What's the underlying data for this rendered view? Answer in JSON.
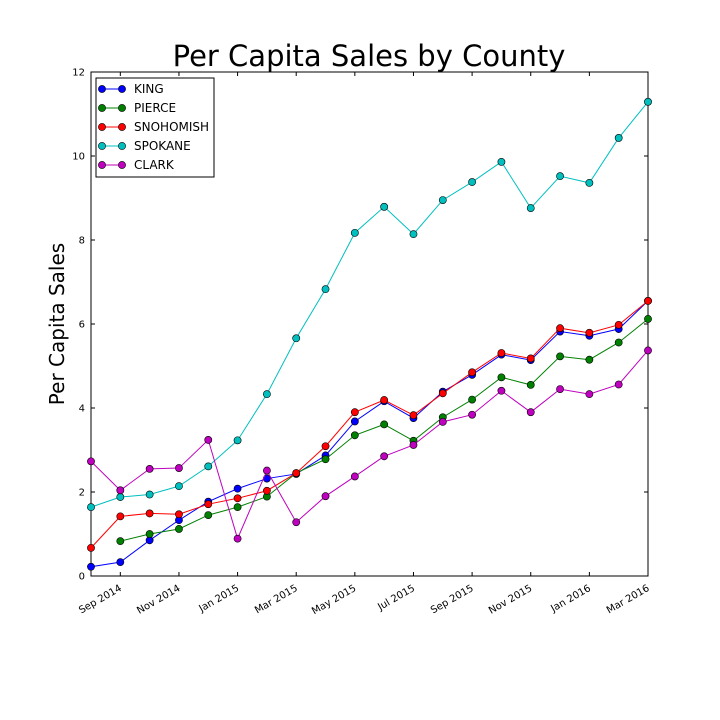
{
  "chart_data": {
    "type": "line",
    "title": "Per Capita Sales by County",
    "xlabel": "",
    "ylabel": "Per Capita Sales",
    "ylim": [
      0,
      12
    ],
    "yticks": [
      "0",
      "2",
      "4",
      "6",
      "8",
      "10",
      "12"
    ],
    "xticks": [
      "Sep 2014",
      "Nov 2014",
      "Jan 2015",
      "Mar 2015",
      "May 2015",
      "Jul 2015",
      "Sep 2015",
      "Nov 2015",
      "Jan 2016",
      "Mar 2016"
    ],
    "x": [
      "2014-08-01",
      "2014-09-01",
      "2014-10-01",
      "2014-11-01",
      "2014-12-01",
      "2015-01-01",
      "2015-02-01",
      "2015-03-01",
      "2015-04-01",
      "2015-05-01",
      "2015-06-01",
      "2015-07-01",
      "2015-08-01",
      "2015-09-01",
      "2015-10-01",
      "2015-11-01",
      "2015-12-01",
      "2016-01-01",
      "2016-02-01",
      "2016-03-01"
    ],
    "legend_position": "top-left",
    "grid": false,
    "series": [
      {
        "name": "KING",
        "color": "#0000ff",
        "values": [
          0.22,
          0.33,
          0.85,
          1.33,
          1.77,
          2.08,
          2.32,
          2.43,
          2.87,
          3.68,
          4.16,
          3.76,
          4.39,
          4.79,
          5.27,
          5.14,
          5.82,
          5.72,
          5.88,
          6.55
        ]
      },
      {
        "name": "PIERCE",
        "color": "#008000",
        "values": [
          null,
          0.83,
          1.0,
          1.12,
          1.45,
          1.64,
          1.89,
          2.45,
          2.78,
          3.35,
          3.61,
          3.22,
          3.78,
          4.2,
          4.73,
          4.55,
          5.23,
          5.15,
          5.56,
          6.12
        ]
      },
      {
        "name": "SNOHOMISH",
        "color": "#ff0000",
        "values": [
          0.67,
          1.42,
          1.49,
          1.47,
          1.71,
          1.85,
          2.03,
          2.45,
          3.09,
          3.9,
          4.19,
          3.83,
          4.35,
          4.85,
          5.31,
          5.18,
          5.9,
          5.79,
          5.98,
          6.55
        ]
      },
      {
        "name": "SPOKANE",
        "color": "#00bfbf",
        "values": [
          1.64,
          1.88,
          1.94,
          2.14,
          2.61,
          3.23,
          4.33,
          5.66,
          6.83,
          8.17,
          8.79,
          8.14,
          8.95,
          9.38,
          9.86,
          8.76,
          9.52,
          9.36,
          10.43,
          11.29
        ]
      },
      {
        "name": "CLARK",
        "color": "#bf00bf",
        "values": [
          2.73,
          2.04,
          2.55,
          2.57,
          3.24,
          0.89,
          2.51,
          1.28,
          1.9,
          2.37,
          2.85,
          3.12,
          3.67,
          3.84,
          4.41,
          3.9,
          4.45,
          4.33,
          4.56,
          5.37
        ]
      }
    ]
  }
}
